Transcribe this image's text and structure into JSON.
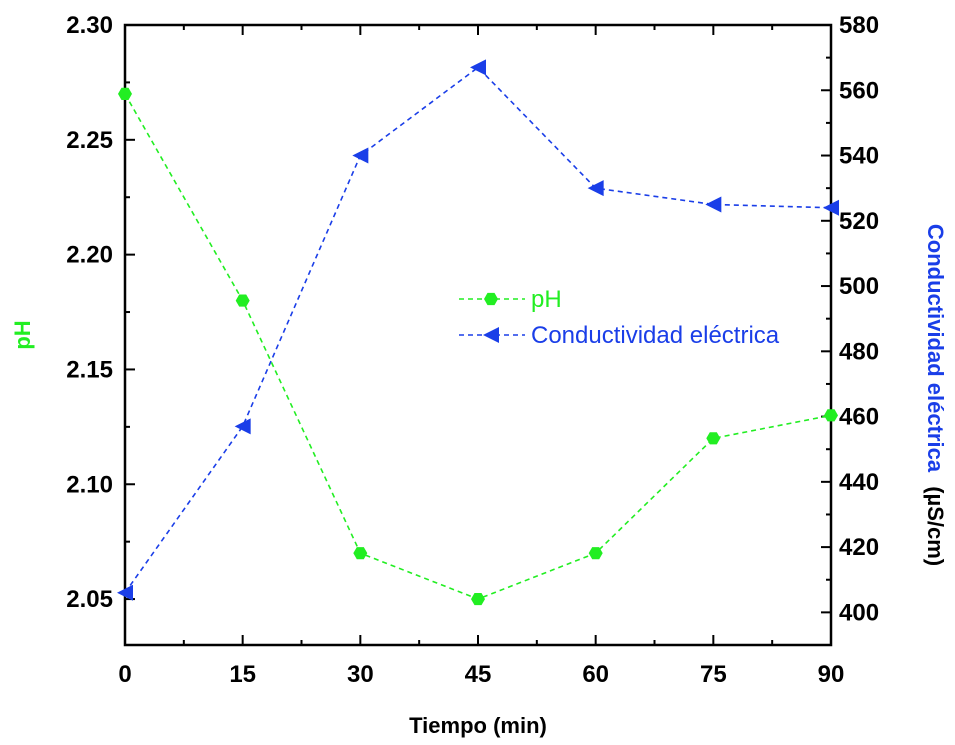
{
  "chart_data": {
    "type": "line",
    "xlabel": "Tiempo (min)",
    "ylabel_left": "pH",
    "ylabel_right": "Conductividad eléctrica",
    "ylabel_right_unit": "(µS/cm)",
    "x": [
      0,
      15,
      30,
      45,
      60,
      75,
      90
    ],
    "x_ticks": [
      "0",
      "15",
      "30",
      "45",
      "60",
      "75",
      "90"
    ],
    "xlim": [
      0,
      90
    ],
    "ylim_left": [
      2.03,
      2.3
    ],
    "ylim_right": [
      390,
      580
    ],
    "y_ticks_left": [
      "2.05",
      "2.10",
      "2.15",
      "2.20",
      "2.25",
      "2.30"
    ],
    "y_ticks_right": [
      "400",
      "420",
      "440",
      "460",
      "480",
      "500",
      "520",
      "540",
      "560",
      "580"
    ],
    "series": [
      {
        "name": "pH",
        "axis": "left",
        "color": "#22ee22",
        "marker": "hexagon",
        "line_style": "dashed",
        "values": [
          2.27,
          2.18,
          2.07,
          2.05,
          2.07,
          2.12,
          2.13
        ]
      },
      {
        "name": "Conductividad eléctrica",
        "axis": "right",
        "color": "#1a3ee8",
        "marker": "left-triangle",
        "line_style": "dashed",
        "values": [
          406,
          457,
          540,
          567,
          530,
          525,
          524
        ]
      }
    ],
    "legend_position": "center-right",
    "grid": false
  }
}
